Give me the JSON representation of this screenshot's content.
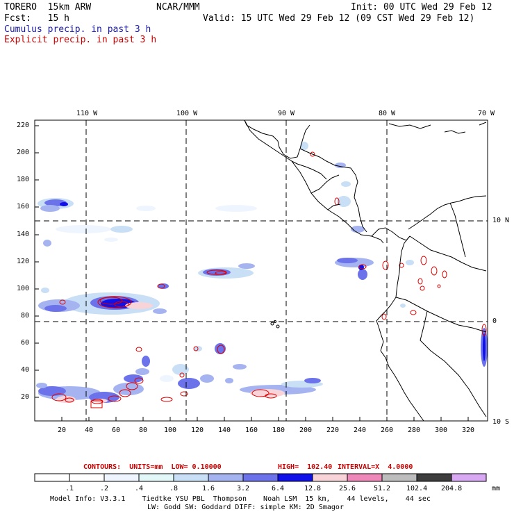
{
  "header": {
    "model": "TORERO  15km ARW",
    "center": "NCAR/MMM",
    "init": "Init: 00 UTC Wed 29 Feb 12",
    "fcst": "Fcst:   15 h",
    "valid": "Valid: 15 UTC Wed 29 Feb 12 (09 CST Wed 29 Feb 12)",
    "cumulus": "Cumulus precip. in past 3 h",
    "explicit": "Explicit precip. in past 3 h"
  },
  "axes": {
    "lon_labels": [
      "110 W",
      "100 W",
      "90 W",
      "80 W",
      "70 W"
    ],
    "lat_labels": [
      "10 N",
      "0",
      "10 S"
    ],
    "y_ticks": [
      "220",
      "200",
      "180",
      "160",
      "140",
      "120",
      "100",
      "80",
      "60",
      "40",
      "20"
    ],
    "x_ticks": [
      "20",
      "40",
      "60",
      "80",
      "100",
      "120",
      "140",
      "160",
      "180",
      "200",
      "220",
      "240",
      "260",
      "280",
      "300",
      "320"
    ]
  },
  "contours_info": {
    "label": "CONTOURS:  UNITS=mm  LOW= 0.10000",
    "high": "HIGH=  102.40",
    "interval": "INTERVAL=X  4.0000"
  },
  "colorbar": {
    "unit": "mm",
    "labels": [
      ".1",
      ".2",
      ".4",
      ".8",
      "1.6",
      "3.2",
      "6.4",
      "12.8",
      "25.6",
      "51.2",
      "102.4",
      "204.8"
    ],
    "colors": [
      "#ffffff",
      "#ffffff",
      "#eef5ff",
      "#e2f7f7",
      "#c8dff6",
      "#a5b4f1",
      "#6b72ea",
      "#1010e8",
      "#f8d4d8",
      "#ee88b8",
      "#bdbdbd",
      "#3d3d3d",
      "#d9a8f2"
    ]
  },
  "footer": {
    "line1": "Model Info: V3.3.1    Tiedtke YSU PBL  Thompson    Noah LSM  15 km,    44 levels,    44 sec",
    "line2": "LW: Godd SW: Goddard DIFF: simple KM: 2D Smagor"
  }
}
